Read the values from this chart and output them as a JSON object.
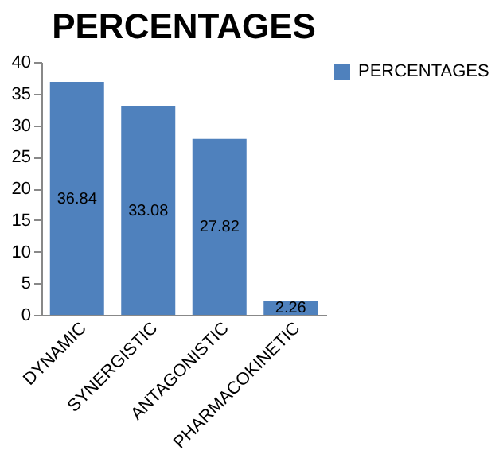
{
  "chart_data": {
    "type": "bar",
    "title": "PERCENTAGES",
    "categories": [
      "DYNAMIC",
      "SYNERGISTIC",
      "ANTAGONISTIC",
      "PHARMACOKINETIC"
    ],
    "series": [
      {
        "name": "PERCENTAGES",
        "color": "#4f81bd",
        "values": [
          36.84,
          33.08,
          27.82,
          2.26
        ]
      }
    ],
    "ylim": [
      0,
      40
    ],
    "yticks": [
      0,
      5,
      10,
      15,
      20,
      25,
      30,
      35,
      40
    ],
    "data_labels": true,
    "legend": "right",
    "grid": false
  }
}
